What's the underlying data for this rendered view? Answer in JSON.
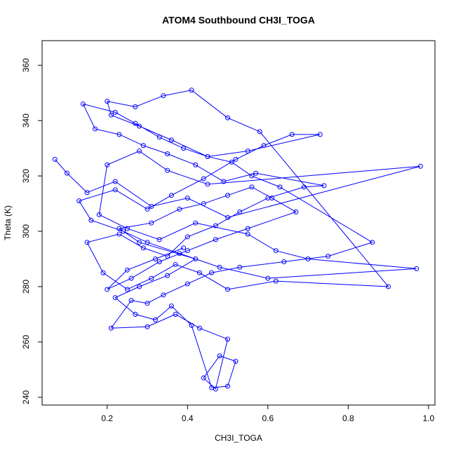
{
  "chart_data": {
    "type": "line",
    "title": "ATOM4 Southbound CH3I_TOGA",
    "x_label": "CH3I_TOGA",
    "y_label": "Theta (K)",
    "color": "#0000ff",
    "markers": true,
    "x": [
      0.07,
      0.1,
      0.15,
      0.22,
      0.31,
      0.4,
      0.5,
      0.98,
      0.45,
      0.35,
      0.28,
      0.2,
      0.18,
      0.25,
      0.33,
      0.42,
      0.55,
      0.62,
      0.7,
      0.97,
      0.6,
      0.48,
      0.38,
      0.3,
      0.24,
      0.16,
      0.13,
      0.22,
      0.3,
      0.36,
      0.44,
      0.52,
      0.59,
      0.66,
      0.73,
      0.55,
      0.45,
      0.36,
      0.28,
      0.21,
      0.2,
      0.27,
      0.34,
      0.41,
      0.5,
      0.58,
      0.9,
      0.62,
      0.5,
      0.43,
      0.37,
      0.31,
      0.25,
      0.19,
      0.15,
      0.23,
      0.29,
      0.35,
      0.4,
      0.47,
      0.53,
      0.6,
      0.69,
      0.74,
      0.57,
      0.49,
      0.42,
      0.35,
      0.29,
      0.23,
      0.17,
      0.14,
      0.22,
      0.27,
      0.33,
      0.39,
      0.45,
      0.51,
      0.56,
      0.63,
      0.86,
      0.75,
      0.64,
      0.53,
      0.46,
      0.4,
      0.34,
      0.3,
      0.26,
      0.21,
      0.3,
      0.37,
      0.43,
      0.5,
      0.47,
      0.44,
      0.48,
      0.52,
      0.5,
      0.46,
      0.41,
      0.36,
      0.32,
      0.27,
      0.22,
      0.28,
      0.35,
      0.42,
      0.28,
      0.23,
      0.31,
      0.38,
      0.44,
      0.5,
      0.56,
      0.61,
      0.67,
      0.55,
      0.47,
      0.4,
      0.33,
      0.26,
      0.2,
      0.25,
      0.32,
      0.39
    ],
    "values": [
      326,
      321,
      314,
      318,
      309,
      312,
      305,
      323.5,
      317,
      322,
      329,
      324,
      306,
      301,
      297,
      303,
      299,
      293,
      290,
      286.5,
      283,
      287,
      292,
      296,
      300,
      304,
      311,
      315,
      308,
      313,
      319,
      326,
      331,
      335,
      335,
      329,
      327,
      333,
      338,
      342,
      347,
      345,
      349,
      351,
      341,
      336,
      280,
      282,
      279,
      285,
      288,
      283,
      279,
      285,
      296,
      299,
      294,
      291,
      298,
      302,
      307,
      312,
      316,
      316.5,
      321,
      318,
      324,
      328,
      331,
      335,
      337,
      346,
      343,
      339,
      334,
      330,
      327,
      325,
      320,
      316,
      296,
      291,
      289,
      287,
      285,
      281,
      277,
      274,
      275,
      265,
      265.5,
      270,
      265,
      261,
      243,
      247,
      255,
      253,
      244,
      243.5,
      266,
      273,
      268,
      270,
      276,
      280,
      284,
      290,
      296,
      301,
      303,
      308,
      310,
      313,
      316,
      312,
      307,
      301,
      297,
      293,
      289,
      283,
      279,
      286,
      290,
      294
    ],
    "xlim": [
      0.038,
      1.016
    ],
    "ylim": [
      237.2,
      368.9
    ],
    "xticks": [
      0.2,
      0.4,
      0.6,
      0.8,
      {
        "value": 1,
        "label": "1.0"
      }
    ],
    "yticks": [
      240,
      260,
      280,
      300,
      320,
      340,
      360
    ]
  }
}
